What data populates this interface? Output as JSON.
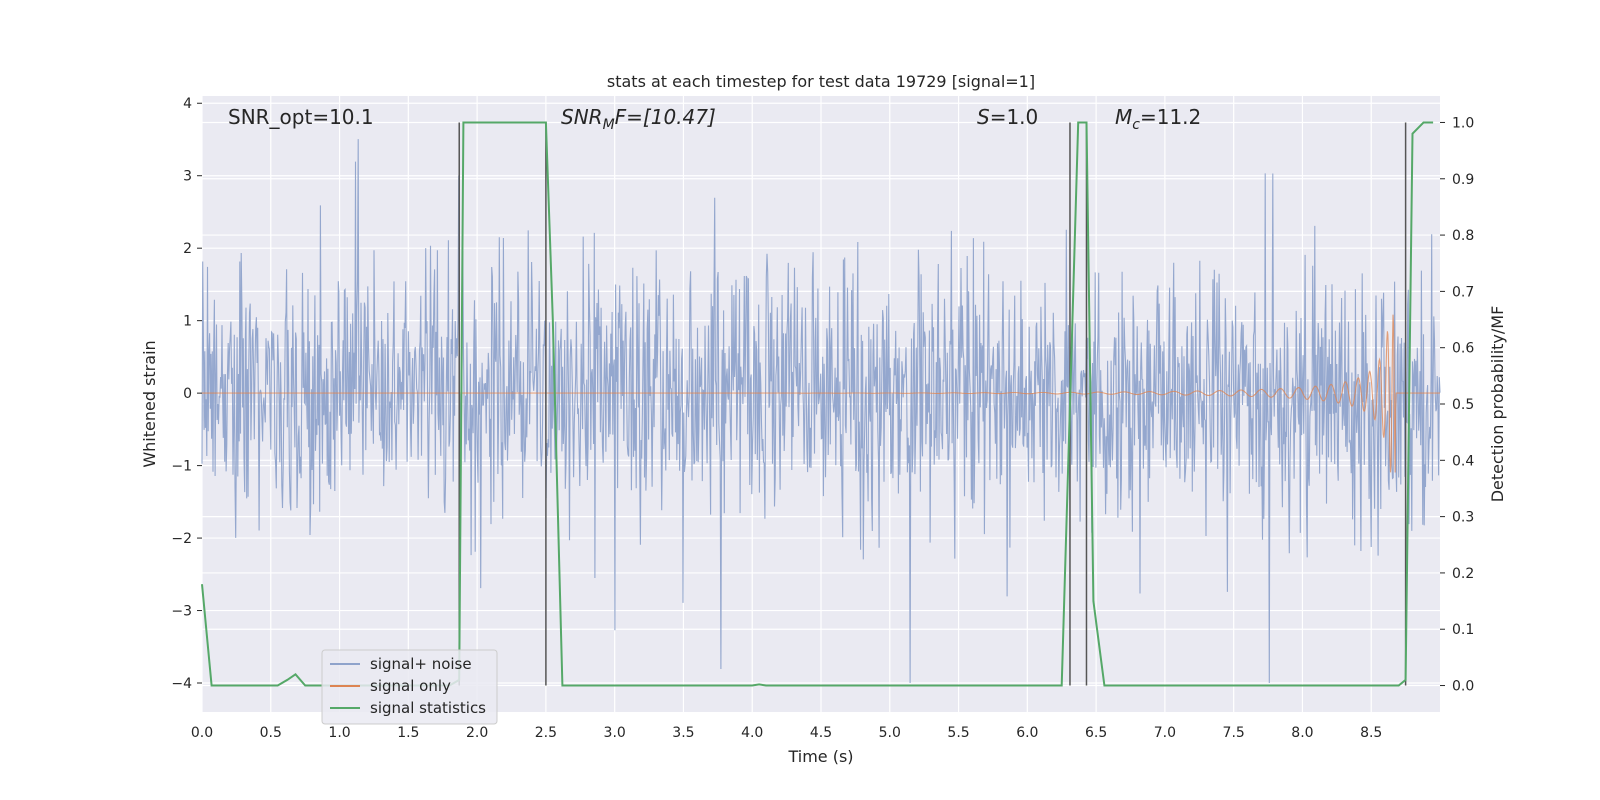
{
  "chart_data": {
    "type": "line",
    "title": "stats at each timestep for test data 19729 [signal=1]",
    "xlabel": "Time (s)",
    "ylabel": "Whitened strain",
    "y2label": "Detection probability/MF",
    "xlim": [
      0.0,
      9.0
    ],
    "ylim": [
      -4.4,
      4.1
    ],
    "y2lim": [
      -0.047,
      1.047
    ],
    "xticks": [
      "0.0",
      "0.5",
      "1.0",
      "1.5",
      "2.0",
      "2.5",
      "3.0",
      "3.5",
      "4.0",
      "4.5",
      "5.0",
      "5.5",
      "6.0",
      "6.5",
      "7.0",
      "7.5",
      "8.0",
      "8.5"
    ],
    "yticks": [
      "4",
      "3",
      "2",
      "1",
      "0",
      "−1",
      "−2",
      "−3",
      "−4"
    ],
    "y2ticks": [
      "1.0",
      "0.9",
      "0.8",
      "0.7",
      "0.6",
      "0.5",
      "0.4",
      "0.3",
      "0.2",
      "0.1",
      "0.0"
    ],
    "grid": true,
    "legend_position": "lower-left",
    "annotations": {
      "snr_opt": "SNR_opt=10.1",
      "snr_mf_main": "SNR",
      "snr_mf_sub": "M",
      "snr_mf_rest": "F=[10.47]",
      "s_main": "S",
      "s_rest": "=1.0",
      "mc_main": "M",
      "mc_sub": "c",
      "mc_rest": "=11.2"
    },
    "series": [
      {
        "name": "signal+ noise",
        "color": "#8fa3cb",
        "description_values": "whitened strain noise fluctuating roughly between -2 and +2.5 with spikes to about 3.7 and -4.0",
        "amplitude_range": [
          -4.0,
          3.7
        ]
      },
      {
        "name": "signal only",
        "color": "#dd8452",
        "chirp": {
          "start_time": 4.0,
          "end_time": 8.68,
          "start_amplitude": 0.0,
          "peak_amplitude": 1.1
        }
      },
      {
        "name": "signal statistics",
        "color": "#55a868",
        "axis": "right",
        "x": [
          0.0,
          0.07,
          0.12,
          0.55,
          0.62,
          0.68,
          0.75,
          1.8,
          1.87,
          1.9,
          1.93,
          2.0,
          2.45,
          2.5,
          2.55,
          2.62,
          4.0,
          4.05,
          4.1,
          6.25,
          6.31,
          6.37,
          6.43,
          6.48,
          6.56,
          8.7,
          8.75,
          8.8,
          8.88,
          8.95
        ],
        "values": [
          0.18,
          0.0,
          0.0,
          0.0,
          0.01,
          0.02,
          0.0,
          0.0,
          0.01,
          1.0,
          1.0,
          1.0,
          1.0,
          1.0,
          0.65,
          0.0,
          0.0,
          0.002,
          0.0,
          0.0,
          0.5,
          1.0,
          1.0,
          0.15,
          0.0,
          0.0,
          0.01,
          0.98,
          1.0,
          1.0
        ]
      }
    ],
    "vertical_markers_x": [
      1.87,
      2.5,
      6.31,
      6.43,
      8.75
    ]
  }
}
